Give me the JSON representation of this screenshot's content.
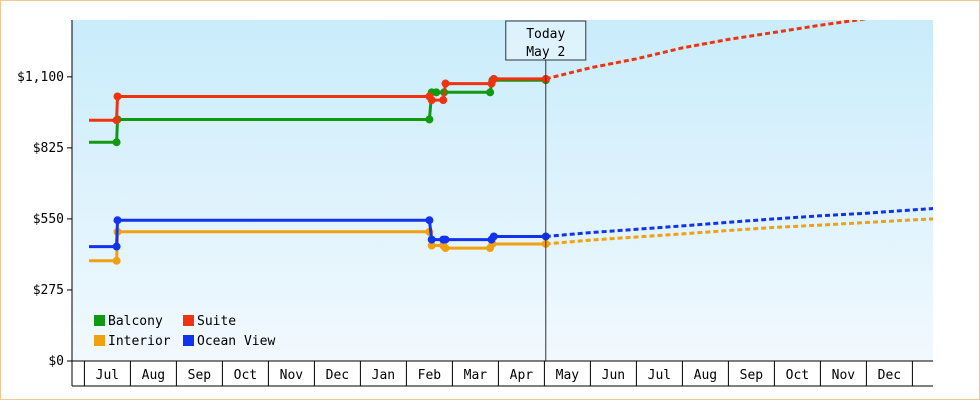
{
  "chart_data": {
    "type": "line",
    "title": "",
    "xlabel": "",
    "ylabel": "",
    "ylim": [
      0,
      1320
    ],
    "y_ticks": [
      {
        "value": 0,
        "label": "$0"
      },
      {
        "value": 275,
        "label": "$275"
      },
      {
        "value": 550,
        "label": "$550"
      },
      {
        "value": 825,
        "label": "$825"
      },
      {
        "value": 1100,
        "label": "$1,100"
      }
    ],
    "x_range": [
      6.6,
      19.35
    ],
    "month_ticks": [
      {
        "label": "Jul",
        "pos": 7
      },
      {
        "label": "Aug",
        "pos": 8
      },
      {
        "label": "Sep",
        "pos": 9
      },
      {
        "label": "Oct",
        "pos": 10
      },
      {
        "label": "Nov",
        "pos": 11
      },
      {
        "label": "Dec",
        "pos": 12
      },
      {
        "label": "Jan",
        "pos": 13
      },
      {
        "label": "Feb",
        "pos": 14
      },
      {
        "label": "Mar",
        "pos": 15
      },
      {
        "label": "Apr",
        "pos": 16
      },
      {
        "label": "May",
        "pos": 17
      },
      {
        "label": "Jun",
        "pos": 18
      },
      {
        "label": "Jul",
        "pos": 19
      },
      {
        "label": "Aug",
        "pos": 20
      },
      {
        "label": "Sep",
        "pos": 21
      },
      {
        "label": "Oct",
        "pos": 22
      },
      {
        "label": "Nov",
        "pos": 23
      },
      {
        "label": "Dec",
        "pos": 24
      }
    ],
    "today": {
      "line1": "Today",
      "line2": "May 2",
      "pos": 16.53
    },
    "grid": false,
    "legend_position": "bottom-left",
    "series": [
      {
        "name": "Balcony",
        "color": "#119911",
        "points": [
          [
            6.6,
            847
          ],
          [
            7.2,
            847
          ],
          [
            7.22,
            935
          ],
          [
            14.0,
            935
          ],
          [
            14.05,
            1040
          ],
          [
            14.15,
            1040
          ],
          [
            14.32,
            1040
          ],
          [
            15.32,
            1040
          ],
          [
            15.37,
            1087
          ],
          [
            16.53,
            1087
          ]
        ],
        "projection": []
      },
      {
        "name": "Suite",
        "color": "#ee3311",
        "points": [
          [
            6.6,
            932
          ],
          [
            7.2,
            932
          ],
          [
            7.22,
            1024
          ],
          [
            14.0,
            1024
          ],
          [
            14.05,
            1010
          ],
          [
            14.3,
            1010
          ],
          [
            14.35,
            1074
          ],
          [
            15.35,
            1074
          ],
          [
            15.4,
            1092
          ],
          [
            16.53,
            1092
          ]
        ],
        "projection": [
          [
            16.53,
            1092
          ],
          [
            17.5,
            1135
          ],
          [
            18.5,
            1170
          ],
          [
            19.5,
            1212
          ],
          [
            20.5,
            1245
          ],
          [
            21.5,
            1272
          ],
          [
            22.5,
            1300
          ],
          [
            23.5,
            1325
          ],
          [
            24.5,
            1348
          ],
          [
            25.2,
            1366
          ]
        ]
      },
      {
        "name": "Interior",
        "color": "#f0a010",
        "points": [
          [
            6.6,
            388
          ],
          [
            7.2,
            388
          ],
          [
            7.22,
            500
          ],
          [
            14.0,
            500
          ],
          [
            14.05,
            447
          ],
          [
            14.3,
            447
          ],
          [
            14.35,
            437
          ],
          [
            15.32,
            437
          ],
          [
            15.37,
            453
          ],
          [
            16.53,
            453
          ]
        ],
        "projection": [
          [
            16.53,
            453
          ],
          [
            17.5,
            468
          ],
          [
            18.5,
            480
          ],
          [
            19.5,
            492
          ],
          [
            20.5,
            505
          ],
          [
            21.5,
            517
          ],
          [
            22.5,
            526
          ],
          [
            23.5,
            536
          ],
          [
            24.5,
            546
          ],
          [
            25.2,
            552
          ]
        ]
      },
      {
        "name": "Ocean View",
        "color": "#1133ee",
        "points": [
          [
            6.6,
            443
          ],
          [
            7.2,
            443
          ],
          [
            7.22,
            545
          ],
          [
            14.0,
            545
          ],
          [
            14.05,
            470
          ],
          [
            14.3,
            470
          ],
          [
            14.35,
            470
          ],
          [
            15.35,
            470
          ],
          [
            15.4,
            482
          ],
          [
            16.53,
            482
          ]
        ],
        "projection": [
          [
            16.53,
            482
          ],
          [
            17.5,
            497
          ],
          [
            18.5,
            510
          ],
          [
            19.5,
            523
          ],
          [
            20.5,
            537
          ],
          [
            21.5,
            550
          ],
          [
            22.5,
            562
          ],
          [
            23.5,
            572
          ],
          [
            24.5,
            585
          ],
          [
            25.2,
            593
          ]
        ]
      }
    ]
  }
}
